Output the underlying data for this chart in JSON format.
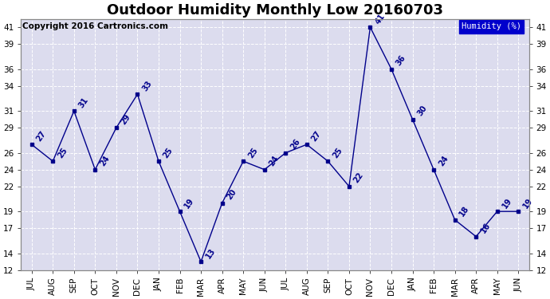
{
  "title": "Outdoor Humidity Monthly Low 20160703",
  "copyright": "Copyright 2016 Cartronics.com",
  "months": [
    "JUL",
    "AUG",
    "SEP",
    "OCT",
    "NOV",
    "DEC",
    "JAN",
    "FEB",
    "MAR",
    "APR",
    "MAY",
    "JUN",
    "JUL",
    "AUG",
    "SEP",
    "OCT",
    "NOV",
    "DEC",
    "JAN",
    "FEB",
    "MAR",
    "APR",
    "MAY",
    "JUN"
  ],
  "values": [
    27,
    25,
    31,
    24,
    29,
    33,
    25,
    19,
    13,
    20,
    25,
    24,
    26,
    27,
    25,
    22,
    41,
    36,
    30,
    24,
    18,
    16,
    19,
    19
  ],
  "line_color": "#00008B",
  "marker_color": "#00008B",
  "background_color": "#ffffff",
  "plot_bg_color": "#dcdcee",
  "grid_color": "#ffffff",
  "ylim": [
    12,
    42
  ],
  "yticks": [
    12,
    14,
    17,
    19,
    22,
    24,
    26,
    29,
    31,
    34,
    36,
    39,
    41
  ],
  "legend_label": "Humidity (%)",
  "legend_bg": "#0000cc",
  "legend_text_color": "#ffffff",
  "title_fontsize": 13,
  "copyright_fontsize": 7.5,
  "axis_fontsize": 7.5,
  "label_fontsize": 7
}
